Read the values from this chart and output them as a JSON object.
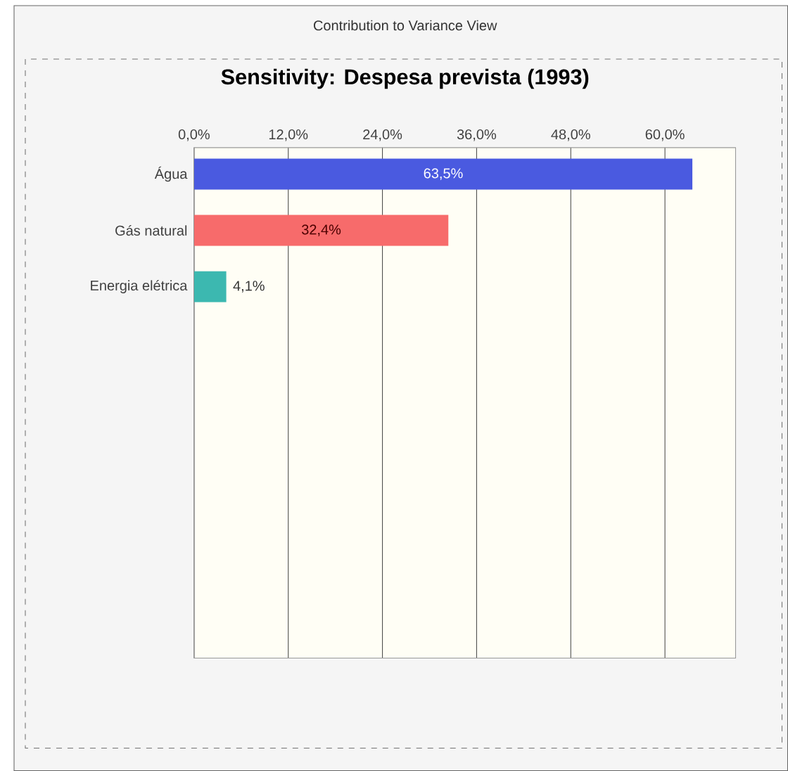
{
  "chart_data": {
    "type": "bar",
    "orientation": "horizontal",
    "title": "Sensitivity: Despesa prevista (1993)",
    "annotations": [
      "Contribution to Variance View"
    ],
    "categories": [
      "Água",
      "Gás natural",
      "Energia elétrica"
    ],
    "values": [
      63.5,
      32.4,
      4.1
    ],
    "value_labels": [
      "63,5%",
      "32,4%",
      "4,1%"
    ],
    "colors": [
      "#4a5ae0",
      "#f76b6b",
      "#3cb8b0"
    ],
    "xlim": [
      0,
      69
    ],
    "xticks": [
      {
        "value": 0,
        "label": "0,0%"
      },
      {
        "value": 12,
        "label": "12,0%"
      },
      {
        "value": 24,
        "label": "24,0%"
      },
      {
        "value": 36,
        "label": "36,0%"
      },
      {
        "value": 48,
        "label": "48,0%"
      },
      {
        "value": 60,
        "label": "60,0%"
      }
    ],
    "grid": "x"
  }
}
